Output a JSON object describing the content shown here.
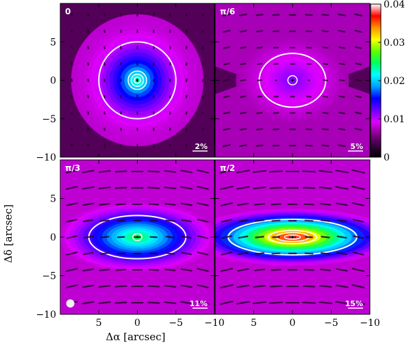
{
  "chart_data": {
    "type": "heatmap",
    "xlabel": "Δα [arcsec]",
    "ylabel": "Δδ [arcsec]",
    "xlim": [
      10,
      -10
    ],
    "ylim": [
      -10,
      10
    ],
    "x_ticks": [
      5,
      0,
      -5,
      -10
    ],
    "y_ticks": [
      5,
      0,
      -5,
      -10
    ],
    "colorbar": {
      "range": [
        0,
        0.04
      ],
      "ticks": [
        0,
        0.01,
        0.02,
        0.03,
        0.04
      ],
      "tick_labels": [
        "0",
        "0.01",
        "0.02",
        "0.03",
        "0.04"
      ],
      "colors": [
        "#000000",
        "#3a0040",
        "#8a0090",
        "#e000ff",
        "#6a00ff",
        "#0000ff",
        "#00a0ff",
        "#00ffff",
        "#00ff60",
        "#60ff00",
        "#ffff00",
        "#ff9000",
        "#ff0000",
        "#ffffff"
      ]
    },
    "panels": [
      {
        "label": "0",
        "scale_label": "2%",
        "peak_fraction": 0.024,
        "ellipse": {
          "a": 5.0,
          "b": 5.0
        },
        "inner_contours": [
          0.4,
          0.8,
          1.2
        ],
        "vector_angle_deg": 0,
        "vector_length": 0.25,
        "vector_mode": "dots",
        "background_fraction": 0.08,
        "beam": false
      },
      {
        "label": "π/6",
        "scale_label": "5%",
        "peak_fraction": 0.012,
        "ellipse": {
          "a": 4.3,
          "b": 3.5
        },
        "inner_contours": [
          0.6
        ],
        "vector_angle_deg": 90,
        "vector_length": 0.6,
        "vector_mode": "short",
        "background_fraction": 0.18,
        "beam": false
      },
      {
        "label": "π/3",
        "scale_label": "11%",
        "peak_fraction": 0.026,
        "ellipse": {
          "a": 6.3,
          "b": 2.8
        },
        "inner_contours": [
          0.6
        ],
        "vector_angle_deg": 90,
        "vector_length": 1.4,
        "vector_mode": "long",
        "background_fraction": 0.2,
        "beam": true
      },
      {
        "label": "π/2",
        "scale_label": "15%",
        "peak_fraction": 0.04,
        "ellipse": {
          "a": 8.3,
          "b": 2.3
        },
        "inner_contours": [
          0.8,
          1.6,
          2.4
        ],
        "vector_angle_deg": 90,
        "vector_length": 1.6,
        "vector_mode": "long",
        "background_fraction": 0.2,
        "beam": false
      }
    ]
  }
}
